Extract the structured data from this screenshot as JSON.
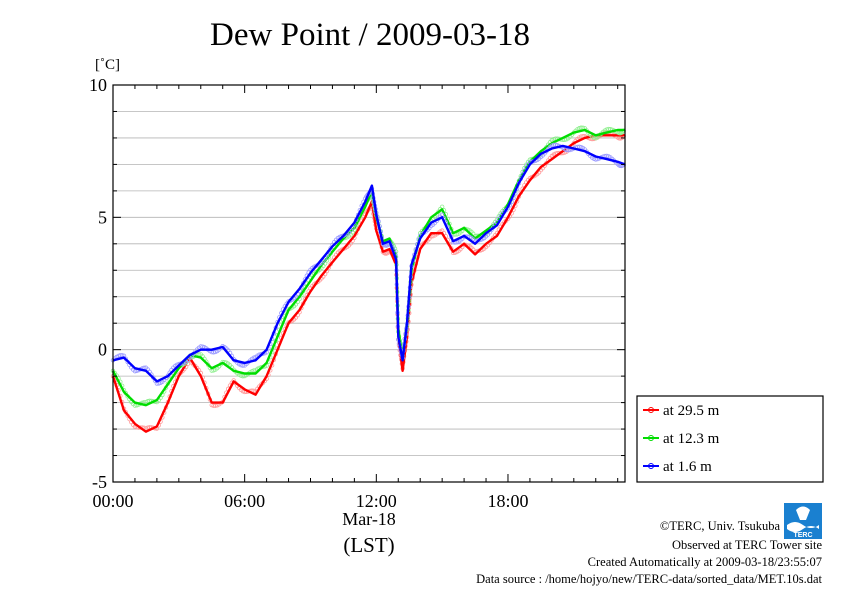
{
  "chart_data": {
    "type": "line",
    "title": "Dew Point / 2009-03-18",
    "ylabel": "[˚C]",
    "xlabel": "(LST)",
    "date_label": "Mar-18",
    "ylim": [
      -5,
      10
    ],
    "xlim": [
      0,
      23.333
    ],
    "y_ticks": [
      10,
      5,
      0,
      -5
    ],
    "y_tick_labels": [
      "10",
      "5",
      "0",
      "-5"
    ],
    "x_ticks": [
      0,
      6,
      12,
      18
    ],
    "x_tick_labels": [
      "00:00",
      "06:00",
      "12:00",
      "18:00"
    ],
    "grid": "horizontal",
    "legend_position": "bottom-right, outside plot",
    "series": [
      {
        "name": "at 29.5 m",
        "color": "#ff0000",
        "x": [
          0,
          0.5,
          1,
          1.5,
          2,
          2.5,
          3,
          3.5,
          4,
          4.5,
          5,
          5.5,
          6,
          6.5,
          7,
          7.5,
          8,
          8.5,
          9,
          9.5,
          10,
          10.5,
          11,
          11.5,
          11.8,
          12,
          12.3,
          12.6,
          12.9,
          13,
          13.2,
          13.4,
          13.6,
          14,
          14.5,
          15,
          15.5,
          16,
          16.5,
          17,
          17.5,
          18,
          18.5,
          19,
          19.5,
          20,
          20.5,
          21,
          21.5,
          22,
          22.5,
          23,
          23.33
        ],
        "values": [
          -1.0,
          -2.3,
          -2.8,
          -3.1,
          -2.9,
          -2.0,
          -1.0,
          -0.3,
          -1.0,
          -2.0,
          -2.0,
          -1.2,
          -1.5,
          -1.7,
          -1.0,
          0.0,
          1.0,
          1.5,
          2.2,
          2.8,
          3.3,
          3.8,
          4.3,
          5.0,
          5.6,
          4.5,
          3.7,
          3.8,
          3.2,
          0.5,
          -0.8,
          0.5,
          2.5,
          3.8,
          4.4,
          4.4,
          3.7,
          4.0,
          3.6,
          4.0,
          4.3,
          5.0,
          5.8,
          6.4,
          6.9,
          7.2,
          7.5,
          7.8,
          8.0,
          8.1,
          8.1,
          8.1,
          8.1
        ]
      },
      {
        "name": "at 12.3 m",
        "color": "#00dd00",
        "x": [
          0,
          0.5,
          1,
          1.5,
          2,
          2.5,
          3,
          3.5,
          4,
          4.5,
          5,
          5.5,
          6,
          6.5,
          7,
          7.5,
          8,
          8.5,
          9,
          9.5,
          10,
          10.5,
          11,
          11.5,
          11.8,
          12,
          12.3,
          12.6,
          12.9,
          13,
          13.2,
          13.4,
          13.6,
          14,
          14.5,
          15,
          15.5,
          16,
          16.5,
          17,
          17.5,
          18,
          18.5,
          19,
          19.5,
          20,
          20.5,
          21,
          21.5,
          22,
          22.5,
          23,
          23.33
        ],
        "values": [
          -0.8,
          -1.6,
          -2.0,
          -2.1,
          -1.9,
          -1.3,
          -0.7,
          -0.2,
          -0.3,
          -0.7,
          -0.5,
          -0.8,
          -0.9,
          -0.9,
          -0.5,
          0.5,
          1.5,
          2.0,
          2.6,
          3.2,
          3.7,
          4.2,
          4.6,
          5.4,
          6.0,
          5.0,
          4.1,
          4.2,
          3.6,
          0.8,
          -0.3,
          0.9,
          3.0,
          4.3,
          5.0,
          5.3,
          4.4,
          4.6,
          4.2,
          4.5,
          4.8,
          5.5,
          6.4,
          7.1,
          7.5,
          7.8,
          8.0,
          8.2,
          8.3,
          8.1,
          8.2,
          8.3,
          8.3
        ]
      },
      {
        "name": "at 1.6 m",
        "color": "#0000ff",
        "x": [
          0,
          0.5,
          1,
          1.5,
          2,
          2.5,
          3,
          3.5,
          4,
          4.5,
          5,
          5.5,
          6,
          6.5,
          7,
          7.5,
          8,
          8.5,
          9,
          9.5,
          10,
          10.5,
          11,
          11.5,
          11.8,
          12,
          12.3,
          12.6,
          12.9,
          13,
          13.2,
          13.4,
          13.6,
          14,
          14.5,
          15,
          15.5,
          16,
          16.5,
          17,
          17.5,
          18,
          18.5,
          19,
          19.5,
          20,
          20.5,
          21,
          21.5,
          22,
          22.5,
          23,
          23.33
        ],
        "values": [
          -0.4,
          -0.3,
          -0.7,
          -0.8,
          -1.2,
          -1.0,
          -0.6,
          -0.2,
          0.0,
          0.0,
          0.1,
          -0.4,
          -0.5,
          -0.4,
          0.0,
          1.0,
          1.8,
          2.3,
          2.9,
          3.4,
          3.9,
          4.3,
          4.8,
          5.6,
          6.2,
          5.1,
          4.0,
          4.1,
          3.4,
          0.5,
          -0.4,
          1.0,
          3.2,
          4.2,
          4.8,
          5.0,
          4.1,
          4.3,
          4.0,
          4.4,
          4.7,
          5.4,
          6.3,
          7.0,
          7.4,
          7.6,
          7.7,
          7.6,
          7.5,
          7.3,
          7.2,
          7.1,
          7.0
        ]
      }
    ]
  },
  "logo": {
    "text": "TERC",
    "color": "#1a80d0"
  },
  "footer": {
    "copyright": "©TERC, Univ. Tsukuba",
    "observed": "Observed at TERC Tower site",
    "created": "Created Automatically at 2009-03-18/23:55:07",
    "source": "Data source : /home/hojyo/new/TERC-data/sorted_data/MET.10s.dat"
  }
}
